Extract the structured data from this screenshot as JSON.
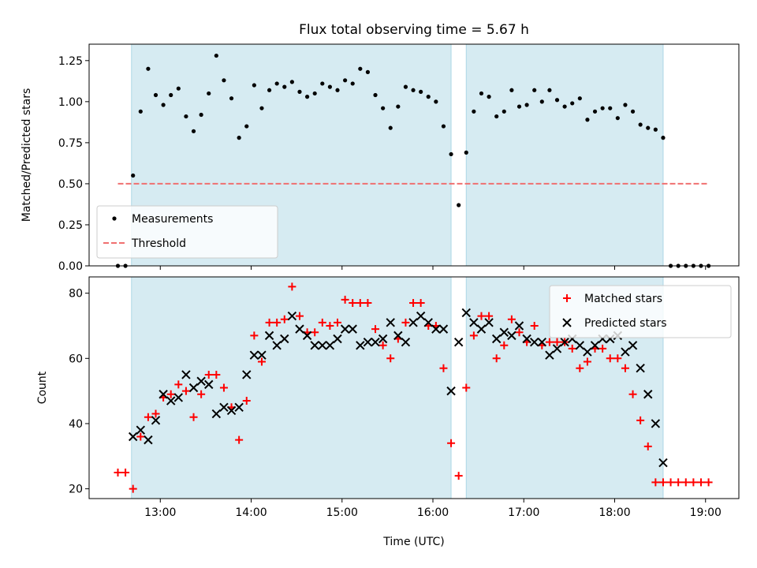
{
  "chart_data": [
    {
      "type": "scatter",
      "title": "Flux total observing time = 5.67 h",
      "xlabel": "",
      "ylabel": "Matched/Predicted stars",
      "xlim": [
        "12:13",
        "19:22"
      ],
      "ylim": [
        0,
        1.35
      ],
      "yticks": [
        0.0,
        0.25,
        0.5,
        0.75,
        1.0,
        1.25
      ],
      "ytick_labels": [
        "0.00",
        "0.25",
        "0.50",
        "0.75",
        "1.00",
        "1.25"
      ],
      "xticks": [
        "13:00",
        "14:00",
        "15:00",
        "16:00",
        "17:00",
        "18:00",
        "19:00"
      ],
      "legend_position": "lower-left",
      "shaded_intervals": [
        [
          "12:41",
          "16:12"
        ],
        [
          "16:22",
          "18:32"
        ]
      ],
      "series": [
        {
          "name": "Measurements",
          "style": "dot",
          "color": "#000000",
          "x": [
            "12:32",
            "12:37",
            "12:42",
            "12:47",
            "12:52",
            "12:57",
            "13:02",
            "13:07",
            "13:12",
            "13:17",
            "13:22",
            "13:27",
            "13:32",
            "13:37",
            "13:42",
            "13:47",
            "13:52",
            "13:57",
            "14:02",
            "14:07",
            "14:12",
            "14:17",
            "14:22",
            "14:27",
            "14:32",
            "14:37",
            "14:42",
            "14:47",
            "14:52",
            "14:57",
            "15:02",
            "15:07",
            "15:12",
            "15:17",
            "15:22",
            "15:27",
            "15:32",
            "15:37",
            "15:42",
            "15:47",
            "15:52",
            "15:57",
            "16:02",
            "16:07",
            "16:12",
            "16:17",
            "16:22",
            "16:27",
            "16:32",
            "16:37",
            "16:42",
            "16:47",
            "16:52",
            "16:57",
            "17:02",
            "17:07",
            "17:12",
            "17:17",
            "17:22",
            "17:27",
            "17:32",
            "17:37",
            "17:42",
            "17:47",
            "17:52",
            "17:57",
            "18:02",
            "18:07",
            "18:12",
            "18:17",
            "18:22",
            "18:27",
            "18:32",
            "18:37",
            "18:42",
            "18:47",
            "18:52",
            "18:57",
            "19:02"
          ],
          "values": [
            0.0,
            0.0,
            0.55,
            0.94,
            1.2,
            1.04,
            0.98,
            1.04,
            1.08,
            0.91,
            0.82,
            0.92,
            1.05,
            1.28,
            1.13,
            1.02,
            0.78,
            0.85,
            1.1,
            0.96,
            1.07,
            1.11,
            1.09,
            1.12,
            1.06,
            1.03,
            1.05,
            1.11,
            1.09,
            1.07,
            1.13,
            1.11,
            1.2,
            1.18,
            1.04,
            0.96,
            0.84,
            0.97,
            1.09,
            1.07,
            1.06,
            1.03,
            1.0,
            0.85,
            0.68,
            0.37,
            0.69,
            0.94,
            1.05,
            1.03,
            0.91,
            0.94,
            1.07,
            0.97,
            0.98,
            1.07,
            1.0,
            1.07,
            1.01,
            0.97,
            0.99,
            1.02,
            0.89,
            0.94,
            0.96,
            0.96,
            0.9,
            0.98,
            0.94,
            0.86,
            0.84,
            0.83,
            0.78,
            0.0,
            0.0,
            0.0,
            0.0,
            0.0,
            0.0
          ]
        },
        {
          "name": "Threshold",
          "style": "dashed-line",
          "color": "#f07070",
          "x": [
            "12:32",
            "19:02"
          ],
          "values": [
            0.5,
            0.5
          ]
        }
      ]
    },
    {
      "type": "scatter",
      "title": "",
      "xlabel": "Time (UTC)",
      "ylabel": "Count",
      "xlim": [
        "12:13",
        "19:22"
      ],
      "ylim": [
        17,
        85
      ],
      "yticks": [
        20,
        40,
        60,
        80
      ],
      "ytick_labels": [
        "20",
        "40",
        "60",
        "80"
      ],
      "xticks": [
        "13:00",
        "14:00",
        "15:00",
        "16:00",
        "17:00",
        "18:00",
        "19:00"
      ],
      "xtick_labels": [
        "13:00",
        "14:00",
        "15:00",
        "16:00",
        "17:00",
        "18:00",
        "19:00"
      ],
      "legend_position": "top-right",
      "shaded_intervals": [
        [
          "12:41",
          "16:12"
        ],
        [
          "16:22",
          "18:32"
        ]
      ],
      "series": [
        {
          "name": "Matched stars",
          "style": "plus",
          "color": "#ff0000",
          "x": [
            "12:32",
            "12:37",
            "12:42",
            "12:47",
            "12:52",
            "12:57",
            "13:02",
            "13:07",
            "13:12",
            "13:17",
            "13:22",
            "13:27",
            "13:32",
            "13:37",
            "13:42",
            "13:47",
            "13:52",
            "13:57",
            "14:02",
            "14:07",
            "14:12",
            "14:17",
            "14:22",
            "14:27",
            "14:32",
            "14:37",
            "14:42",
            "14:47",
            "14:52",
            "14:57",
            "15:02",
            "15:07",
            "15:12",
            "15:17",
            "15:22",
            "15:27",
            "15:32",
            "15:37",
            "15:42",
            "15:47",
            "15:52",
            "15:57",
            "16:02",
            "16:07",
            "16:12",
            "16:17",
            "16:22",
            "16:27",
            "16:32",
            "16:37",
            "16:42",
            "16:47",
            "16:52",
            "16:57",
            "17:02",
            "17:07",
            "17:12",
            "17:17",
            "17:22",
            "17:27",
            "17:32",
            "17:37",
            "17:42",
            "17:47",
            "17:52",
            "17:57",
            "18:02",
            "18:07",
            "18:12",
            "18:17",
            "18:22",
            "18:27",
            "18:32",
            "18:37",
            "18:42",
            "18:47",
            "18:52",
            "18:57",
            "19:02"
          ],
          "values": [
            25,
            25,
            20,
            36,
            42,
            43,
            48,
            49,
            52,
            50,
            42,
            49,
            55,
            55,
            51,
            45,
            35,
            47,
            67,
            59,
            71,
            71,
            72,
            82,
            73,
            68,
            68,
            71,
            70,
            71,
            78,
            77,
            77,
            77,
            69,
            64,
            60,
            66,
            71,
            77,
            77,
            70,
            70,
            57,
            34,
            24,
            51,
            67,
            73,
            73,
            60,
            64,
            72,
            68,
            65,
            70,
            64,
            65,
            65,
            65,
            63,
            57,
            59,
            63,
            63,
            60,
            60,
            57,
            49,
            41,
            33,
            22,
            22,
            22,
            22,
            22,
            22,
            22,
            22
          ]
        },
        {
          "name": "Predicted stars",
          "style": "x",
          "color": "#000000",
          "x": [
            "12:42",
            "12:47",
            "12:52",
            "12:57",
            "13:02",
            "13:07",
            "13:12",
            "13:17",
            "13:22",
            "13:27",
            "13:32",
            "13:37",
            "13:42",
            "13:47",
            "13:52",
            "13:57",
            "14:02",
            "14:07",
            "14:12",
            "14:17",
            "14:22",
            "14:27",
            "14:32",
            "14:37",
            "14:42",
            "14:47",
            "14:52",
            "14:57",
            "15:02",
            "15:07",
            "15:12",
            "15:17",
            "15:22",
            "15:27",
            "15:32",
            "15:37",
            "15:42",
            "15:47",
            "15:52",
            "15:57",
            "16:02",
            "16:07",
            "16:12",
            "16:17",
            "16:22",
            "16:27",
            "16:32",
            "16:37",
            "16:42",
            "16:47",
            "16:52",
            "16:57",
            "17:02",
            "17:07",
            "17:12",
            "17:17",
            "17:22",
            "17:27",
            "17:32",
            "17:37",
            "17:42",
            "17:47",
            "17:52",
            "17:57",
            "18:02",
            "18:07",
            "18:12",
            "18:17",
            "18:22",
            "18:27",
            "18:32"
          ],
          "values": [
            36,
            38,
            35,
            41,
            49,
            47,
            48,
            55,
            51,
            53,
            52,
            43,
            45,
            44,
            45,
            55,
            61,
            61,
            67,
            64,
            66,
            73,
            69,
            67,
            64,
            64,
            64,
            66,
            69,
            69,
            64,
            65,
            65,
            66,
            71,
            67,
            65,
            71,
            73,
            71,
            69,
            69,
            50,
            65,
            74,
            71,
            69,
            71,
            66,
            68,
            67,
            70,
            66,
            65,
            65,
            61,
            63,
            65,
            66,
            64,
            62,
            64,
            66,
            66,
            67,
            62,
            64,
            57,
            49,
            40,
            28
          ]
        }
      ]
    }
  ]
}
